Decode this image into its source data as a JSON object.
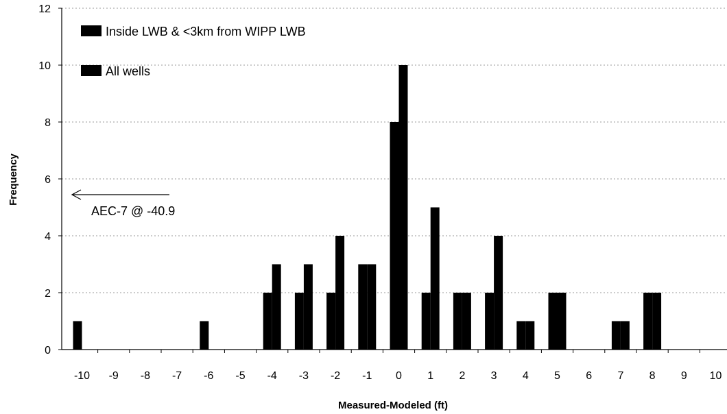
{
  "colors": {
    "bar": "#000000",
    "grid": "#999999",
    "background": "#ffffff"
  },
  "chart_data": {
    "type": "bar",
    "xlabel": "Measured-Modeled (ft)",
    "ylabel": "Frequency",
    "categories": [
      "-10",
      "-9",
      "-8",
      "-7",
      "-6",
      "-5",
      "-4",
      "-3",
      "-2",
      "-1",
      "0",
      "1",
      "2",
      "3",
      "4",
      "5",
      "6",
      "7",
      "8",
      "9",
      "10"
    ],
    "yticks": [
      "0",
      "2",
      "4",
      "6",
      "8",
      "10",
      "12"
    ],
    "ylim": [
      0,
      12
    ],
    "grid": "horizontal",
    "legend_position": "top-left",
    "series": [
      {
        "name": "Inside LWB & <3km from WIPP LWB",
        "color": "#000000",
        "values": [
          1,
          0,
          0,
          0,
          1,
          0,
          2,
          2,
          2,
          3,
          8,
          2,
          2,
          2,
          1,
          2,
          0,
          1,
          2,
          0,
          0
        ]
      },
      {
        "name": "All wells",
        "color": "#000000",
        "values": [
          0,
          0,
          0,
          0,
          0,
          0,
          3,
          3,
          4,
          3,
          10,
          5,
          2,
          4,
          1,
          2,
          0,
          1,
          2,
          0,
          0
        ]
      }
    ],
    "annotations": [
      {
        "text": "AEC-7 @ -40.9",
        "arrow": "left",
        "x": -10,
        "y": 5.5
      }
    ]
  }
}
